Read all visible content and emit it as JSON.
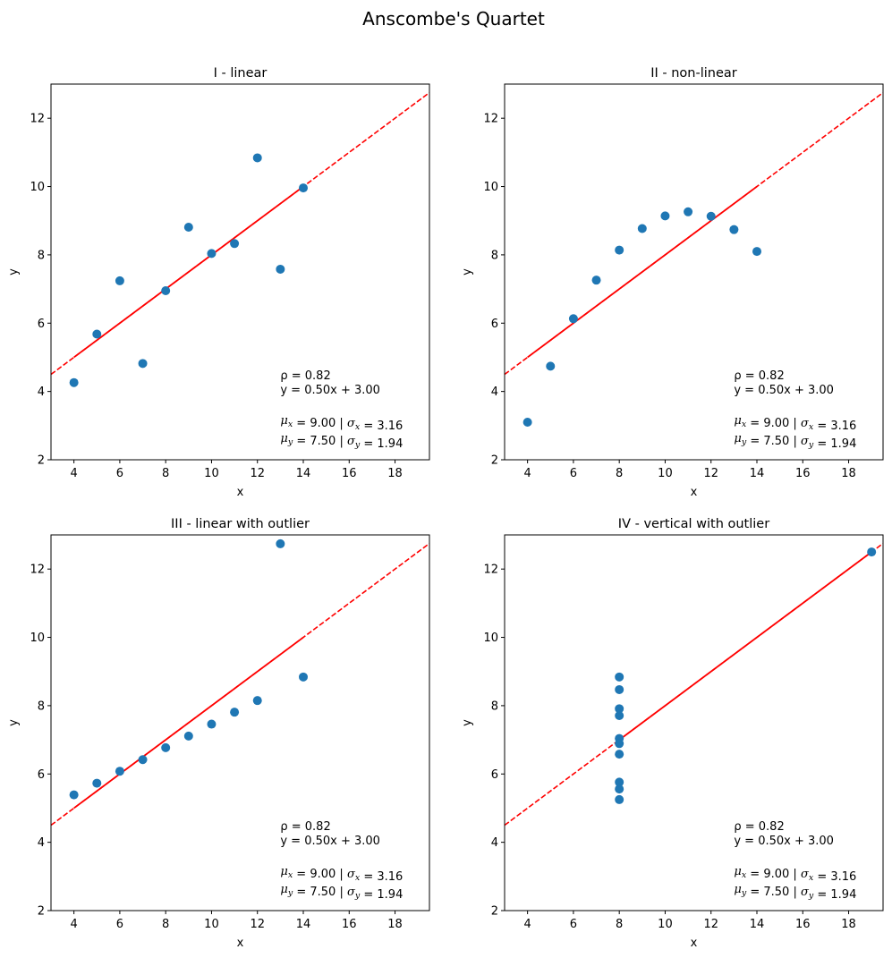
{
  "figure": {
    "title": "Anscombe's Quartet"
  },
  "colors": {
    "points": "#1f77b4",
    "fit_line": "#ff0000",
    "axes": "#000000",
    "background": "#ffffff"
  },
  "chart_data": [
    {
      "type": "scatter",
      "title": "I - linear",
      "xlabel": "x",
      "ylabel": "y",
      "xlim": [
        3,
        19.5
      ],
      "ylim": [
        2,
        13
      ],
      "xticks": [
        4,
        6,
        8,
        10,
        12,
        14,
        16,
        18
      ],
      "yticks": [
        2,
        4,
        6,
        8,
        10,
        12
      ],
      "grid": false,
      "x": [
        10,
        8,
        13,
        9,
        11,
        14,
        6,
        4,
        12,
        7,
        5
      ],
      "y": [
        8.04,
        6.95,
        7.58,
        8.81,
        8.33,
        9.96,
        7.24,
        4.26,
        10.84,
        4.82,
        5.68
      ],
      "fit": {
        "slope": 0.5,
        "intercept": 3.0
      },
      "annotation": {
        "rho": "ρ = 0.82",
        "equation": "y = 0.50x + 3.00",
        "mu_x": "9.00",
        "sigma_x": "3.16",
        "mu_y": "7.50",
        "sigma_y": "1.94"
      }
    },
    {
      "type": "scatter",
      "title": "II - non-linear",
      "xlabel": "x",
      "ylabel": "y",
      "xlim": [
        3,
        19.5
      ],
      "ylim": [
        2,
        13
      ],
      "xticks": [
        4,
        6,
        8,
        10,
        12,
        14,
        16,
        18
      ],
      "yticks": [
        2,
        4,
        6,
        8,
        10,
        12
      ],
      "grid": false,
      "x": [
        10,
        8,
        13,
        9,
        11,
        14,
        6,
        4,
        12,
        7,
        5
      ],
      "y": [
        9.14,
        8.14,
        8.74,
        8.77,
        9.26,
        8.1,
        6.13,
        3.1,
        9.13,
        7.26,
        4.74
      ],
      "fit": {
        "slope": 0.5,
        "intercept": 3.0
      },
      "annotation": {
        "rho": "ρ = 0.82",
        "equation": "y = 0.50x + 3.00",
        "mu_x": "9.00",
        "sigma_x": "3.16",
        "mu_y": "7.50",
        "sigma_y": "1.94"
      }
    },
    {
      "type": "scatter",
      "title": "III - linear with outlier",
      "xlabel": "x",
      "ylabel": "y",
      "xlim": [
        3,
        19.5
      ],
      "ylim": [
        2,
        13
      ],
      "xticks": [
        4,
        6,
        8,
        10,
        12,
        14,
        16,
        18
      ],
      "yticks": [
        2,
        4,
        6,
        8,
        10,
        12
      ],
      "grid": false,
      "x": [
        10,
        8,
        13,
        9,
        11,
        14,
        6,
        4,
        12,
        7,
        5
      ],
      "y": [
        7.46,
        6.77,
        12.74,
        7.11,
        7.81,
        8.84,
        6.08,
        5.39,
        8.15,
        6.42,
        5.73
      ],
      "fit": {
        "slope": 0.5,
        "intercept": 3.0
      },
      "annotation": {
        "rho": "ρ = 0.82",
        "equation": "y = 0.50x + 3.00",
        "mu_x": "9.00",
        "sigma_x": "3.16",
        "mu_y": "7.50",
        "sigma_y": "1.94"
      }
    },
    {
      "type": "scatter",
      "title": "IV - vertical with outlier",
      "xlabel": "x",
      "ylabel": "y",
      "xlim": [
        3,
        19.5
      ],
      "ylim": [
        2,
        13
      ],
      "xticks": [
        4,
        6,
        8,
        10,
        12,
        14,
        16,
        18
      ],
      "yticks": [
        2,
        4,
        6,
        8,
        10,
        12
      ],
      "grid": false,
      "x": [
        8,
        8,
        8,
        8,
        8,
        8,
        8,
        19,
        8,
        8,
        8
      ],
      "y": [
        6.58,
        5.76,
        7.71,
        8.84,
        8.47,
        7.04,
        5.25,
        12.5,
        5.56,
        7.91,
        6.89
      ],
      "fit": {
        "slope": 0.5,
        "intercept": 3.0
      },
      "annotation": {
        "rho": "ρ = 0.82",
        "equation": "y = 0.50x + 3.00",
        "mu_x": "9.00",
        "sigma_x": "3.16",
        "mu_y": "7.50",
        "sigma_y": "1.94"
      }
    }
  ]
}
